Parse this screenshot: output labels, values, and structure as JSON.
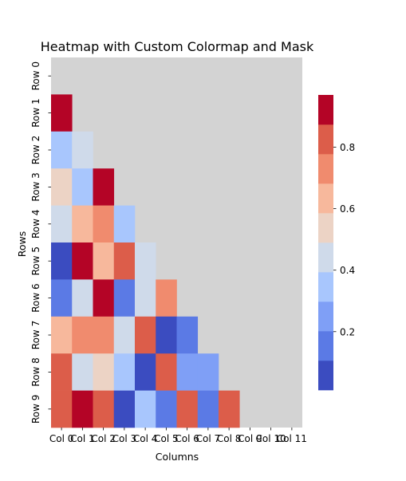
{
  "chart_data": {
    "type": "heatmap",
    "title": "Heatmap with Custom Colormap and Mask",
    "xlabel": "Columns",
    "ylabel": "Rows",
    "x_tick_labels": [
      "Col 0",
      "Col 1",
      "Col 2",
      "Col 3",
      "Col 4",
      "Col 5",
      "Col 6",
      "Col 7",
      "Col 8",
      "Col 9",
      "Col 10",
      "Col 11"
    ],
    "y_tick_labels": [
      "Row 0",
      "Row 1",
      "Row 2",
      "Row 3",
      "Row 4",
      "Row 5",
      "Row 6",
      "Row 7",
      "Row 8",
      "Row 9"
    ],
    "mask": "upper triangle including diagonal (cells where column >= row are masked)",
    "mask_color": "#d3d3d3",
    "colormap": "coolwarm, 10 discrete levels",
    "colorbar": {
      "ticks": [
        0.2,
        0.4,
        0.6,
        0.8
      ],
      "range": [
        0.01,
        0.97
      ],
      "bins": 10,
      "colors": [
        "#3b4cc0",
        "#5b7ae5",
        "#7f9ff6",
        "#a8c6fd",
        "#cfdaea",
        "#ecd3c5",
        "#f7b89c",
        "#f08b6e",
        "#dc5d4a",
        "#b40426"
      ]
    },
    "values": [
      [
        null,
        null,
        null,
        null,
        null,
        null,
        null,
        null,
        null,
        null,
        null,
        null
      ],
      [
        0.96,
        null,
        null,
        null,
        null,
        null,
        null,
        null,
        null,
        null,
        null,
        null
      ],
      [
        0.34,
        0.42,
        null,
        null,
        null,
        null,
        null,
        null,
        null,
        null,
        null,
        null
      ],
      [
        0.53,
        0.34,
        0.96,
        null,
        null,
        null,
        null,
        null,
        null,
        null,
        null,
        null
      ],
      [
        0.42,
        0.61,
        0.7,
        0.34,
        null,
        null,
        null,
        null,
        null,
        null,
        null,
        null
      ],
      [
        0.05,
        0.96,
        0.61,
        0.82,
        0.42,
        null,
        null,
        null,
        null,
        null,
        null,
        null
      ],
      [
        0.15,
        0.42,
        0.96,
        0.15,
        0.42,
        0.7,
        null,
        null,
        null,
        null,
        null,
        null
      ],
      [
        0.61,
        0.7,
        0.7,
        0.42,
        0.82,
        0.05,
        0.15,
        null,
        null,
        null,
        null,
        null
      ],
      [
        0.82,
        0.42,
        0.53,
        0.34,
        0.05,
        0.82,
        0.25,
        0.25,
        null,
        null,
        null,
        null
      ],
      [
        0.82,
        0.96,
        0.82,
        0.05,
        0.34,
        0.15,
        0.82,
        0.15,
        0.82,
        null,
        null,
        null
      ]
    ]
  }
}
